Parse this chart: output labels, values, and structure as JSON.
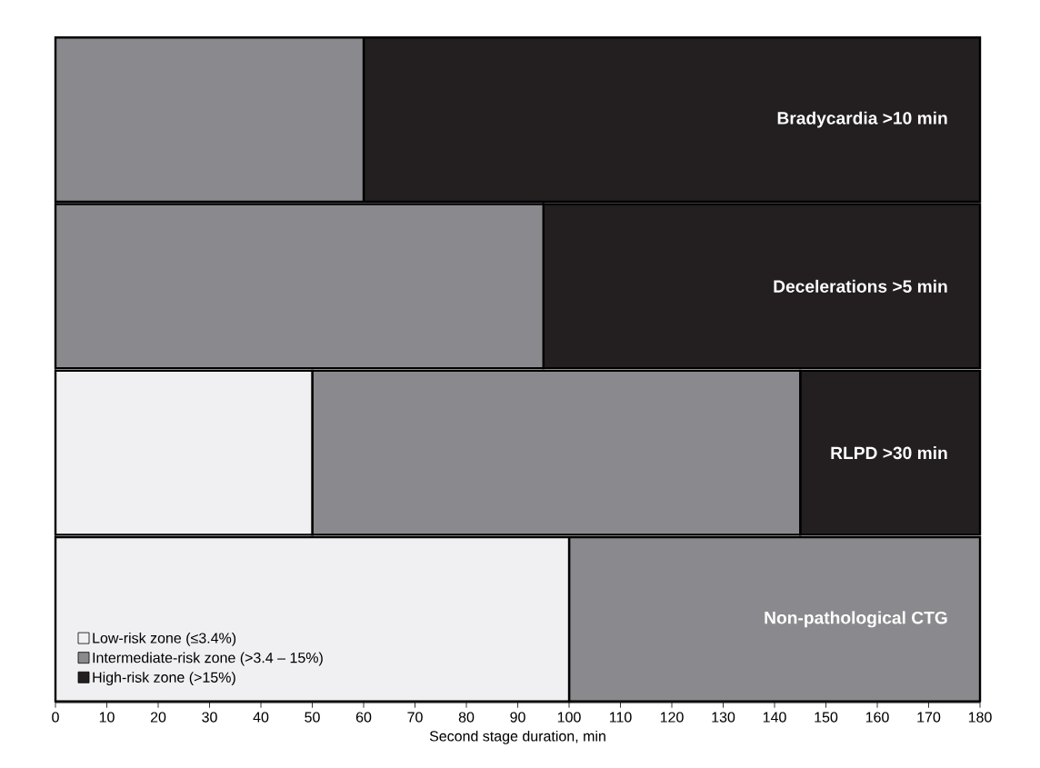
{
  "chart_data": {
    "type": "bar",
    "orientation": "horizontal",
    "stacked": true,
    "xlabel": "Second stage duration, min",
    "categories": [
      "Bradycardia >10 min",
      "Decelerations >5 min",
      "RLPD >30 min",
      "Non-pathological CTG"
    ],
    "series": [
      {
        "name": "Low-risk zone (≤3.4%)",
        "color": "#f0f0f2",
        "values": [
          0,
          0,
          50,
          100
        ]
      },
      {
        "name": "Intermediate-risk zone (>3.4 – 15%)",
        "color": "#8a8a8e",
        "values": [
          60,
          95,
          95,
          80
        ]
      },
      {
        "name": "High-risk zone (>15%)",
        "color": "#231f20",
        "values": [
          120,
          85,
          35,
          0
        ]
      }
    ],
    "xlim": [
      0,
      180
    ],
    "xticks": [
      0,
      10,
      20,
      30,
      40,
      50,
      60,
      70,
      80,
      90,
      100,
      110,
      120,
      130,
      140,
      150,
      160,
      170,
      180
    ],
    "legend": "bottom left",
    "grid": false
  }
}
